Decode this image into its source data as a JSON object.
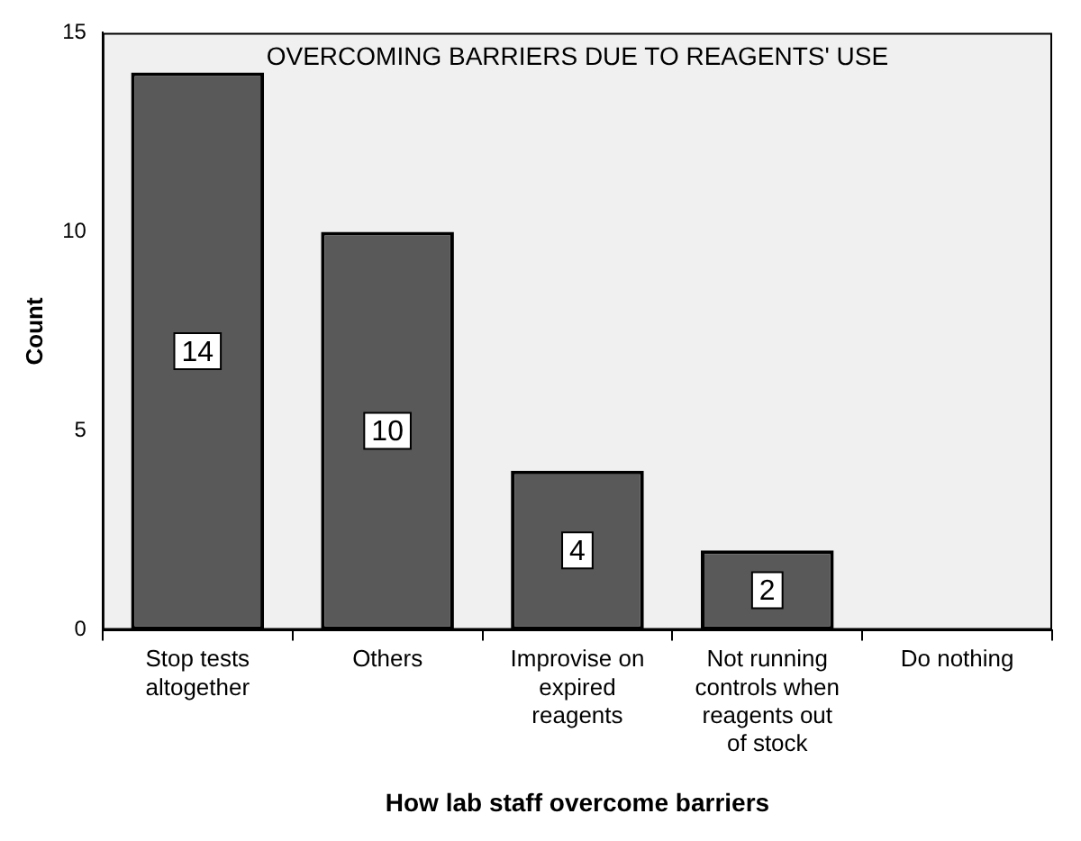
{
  "chart_data": {
    "type": "bar",
    "title": "OVERCOMING BARRIERS DUE TO REAGENTS' USE",
    "xlabel": "How lab staff overcome barriers",
    "ylabel": "Count",
    "categories": [
      "Stop tests altogether",
      "Others",
      "Improvise on expired reagents",
      "Not running controls when reagents out of stock",
      "Do nothing"
    ],
    "values": [
      14,
      10,
      4,
      2,
      0
    ],
    "color": "#595959",
    "value_labels": [
      "14",
      "10",
      "4",
      "2",
      null
    ],
    "ylim": [
      0,
      15
    ],
    "yticks": [
      0,
      5,
      10,
      15
    ],
    "grid": false,
    "legend": false
  }
}
